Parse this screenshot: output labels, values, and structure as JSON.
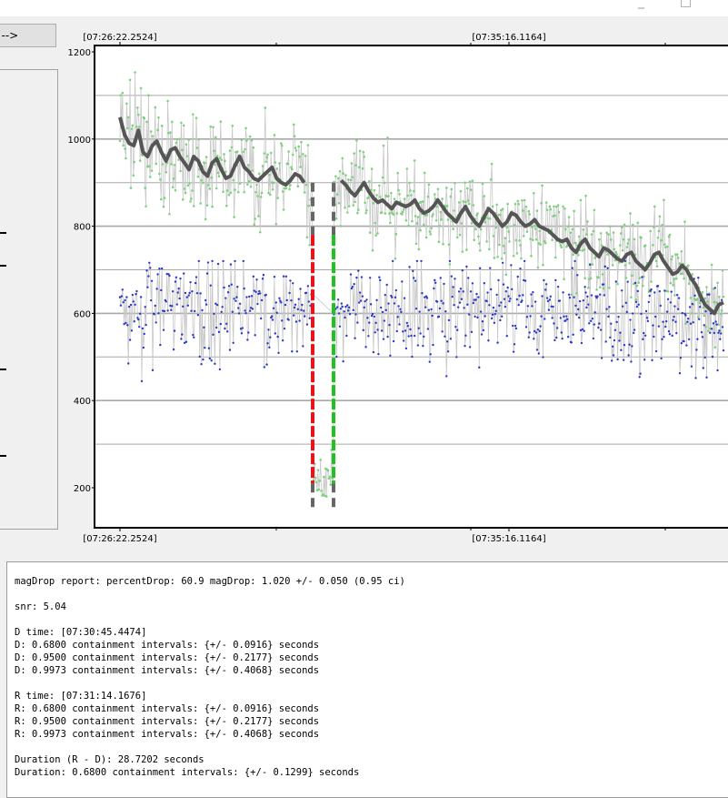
{
  "window": {
    "minimize_glyph": "_",
    "maximize_glyph": "□"
  },
  "toolbar": {
    "next_label": "t -->"
  },
  "plot": {
    "top_time_labels": [
      "[07:26:22.2524]",
      "[07:35:16.1164]"
    ],
    "bottom_time_labels": [
      "[07:26:22.2524]",
      "[07:35:16.1164]"
    ],
    "colors": {
      "target_points": "#7ed17e",
      "comparison_points": "#2b39c9",
      "connector": "#c8c8c8",
      "smoothed": "#555555",
      "d_edge": "#e8141b",
      "r_edge": "#1fc21f",
      "grid": "#a9a9a9"
    }
  },
  "chart_data": {
    "type": "line",
    "ylim": [
      140,
      1200
    ],
    "yticks": [
      200,
      400,
      600,
      800,
      1000,
      1200
    ],
    "x_tick_labels": [
      "[07:26:22.2524]",
      "[07:35:16.1164]"
    ],
    "series": [],
    "markers": {
      "D_time": "[07:30:45.4474]",
      "R_time": "[07:31:14.1676]",
      "edge_top": 780,
      "edge_bottom": 210,
      "event_bottom": 150
    },
    "smoothed_curve": [
      1050,
      1010,
      990,
      985,
      1020,
      970,
      960,
      985,
      995,
      970,
      950,
      975,
      980,
      960,
      945,
      930,
      960,
      950,
      925,
      915,
      945,
      955,
      930,
      910,
      915,
      940,
      960,
      935,
      925,
      910,
      905,
      915,
      925,
      935,
      910,
      900,
      895,
      905,
      920,
      915,
      900,
      890,
      900,
      910,
      895,
      880,
      875,
      890,
      905,
      895,
      880,
      870,
      885,
      900,
      880,
      865,
      855,
      860,
      850,
      840,
      855,
      850,
      845,
      850,
      860,
      840,
      830,
      835,
      845,
      860,
      845,
      830,
      820,
      810,
      830,
      845,
      825,
      810,
      800,
      820,
      840,
      830,
      815,
      800,
      810,
      830,
      825,
      810,
      800,
      805,
      815,
      800,
      795,
      790,
      780,
      770,
      765,
      770,
      750,
      740,
      760,
      770,
      750,
      740,
      730,
      750,
      745,
      735,
      725,
      720,
      735,
      740,
      720,
      710,
      700,
      715,
      735,
      740,
      720,
      705,
      690,
      695,
      710,
      700,
      680,
      665,
      640,
      620,
      610,
      600,
      620,
      625
    ]
  },
  "report": {
    "lines": [
      "magDrop report: percentDrop: 60.9 magDrop: 1.020 +/- 0.050 (0.95 ci)",
      "",
      "snr: 5.04",
      "",
      "D time: [07:30:45.4474]",
      "D: 0.6800 containment intervals: {+/- 0.0916} seconds",
      "D: 0.9500 containment intervals: {+/- 0.2177} seconds",
      "D: 0.9973 containment intervals: {+/- 0.4068} seconds",
      "",
      "R time: [07:31:14.1676]",
      "R: 0.6800 containment intervals: {+/- 0.0916} seconds",
      "R: 0.9500 containment intervals: {+/- 0.2177} seconds",
      "R: 0.9973 containment intervals: {+/- 0.4068} seconds",
      "",
      "Duration (R - D): 28.7202 seconds",
      "Duration: 0.6800 containment intervals: {+/- 0.1299} seconds"
    ]
  }
}
